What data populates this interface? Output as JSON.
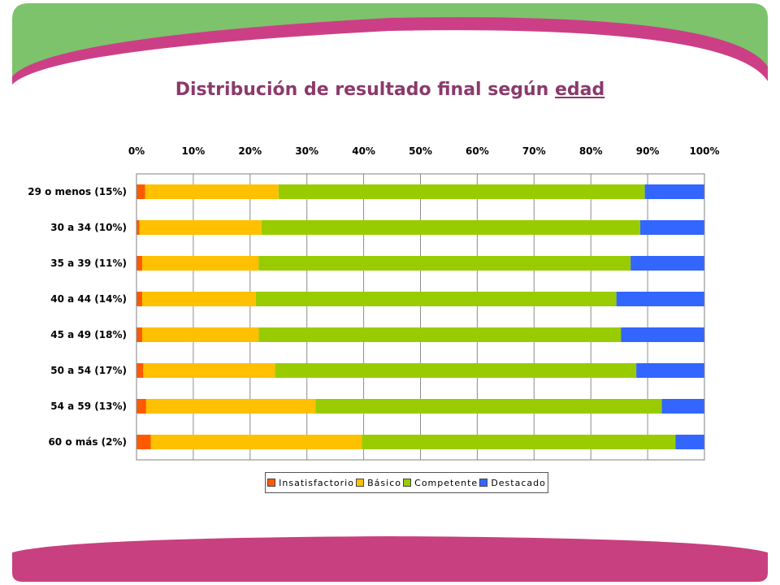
{
  "title": {
    "main": "Distribución de resultado final según",
    "emphasis": "edad"
  },
  "colors": {
    "green_band": "#7dc36b",
    "pink_band": "#cc3f86",
    "title": "#8b3a6b"
  },
  "chart_data": {
    "type": "bar",
    "orientation": "horizontal",
    "stacked": "percent",
    "categories": [
      "29 o menos (15%)",
      "30 a 34 (10%)",
      "35 a 39 (11%)",
      "40 a 44 (14%)",
      "45 a 49 (18%)",
      "50 a 54 (17%)",
      "54 a 59 (13%)",
      "60 o más (2%)"
    ],
    "series": [
      {
        "name": "Insatisfactorio",
        "color": "#ff5a00",
        "values": [
          1.5,
          0.5,
          1,
          1,
          1,
          1.2,
          1.7,
          2.5
        ]
      },
      {
        "name": "Básico",
        "color": "#ffc000",
        "values": [
          23.5,
          21.5,
          20.5,
          20,
          20.5,
          23.2,
          29.8,
          37.2
        ]
      },
      {
        "name": "Competente",
        "color": "#99cc00",
        "values": [
          64.5,
          66.7,
          65.5,
          63.5,
          63.8,
          63.6,
          61,
          55.2
        ]
      },
      {
        "name": "Destacado",
        "color": "#3366ff",
        "values": [
          10.5,
          11.3,
          13,
          15.5,
          14.7,
          12,
          7.5,
          5.1
        ]
      }
    ],
    "xlim": [
      0,
      100
    ],
    "xticks": [
      "0%",
      "10%",
      "20%",
      "30%",
      "40%",
      "50%",
      "60%",
      "70%",
      "80%",
      "90%",
      "100%"
    ],
    "x_axis_position": "top",
    "grid": true,
    "legend": "bottom"
  }
}
